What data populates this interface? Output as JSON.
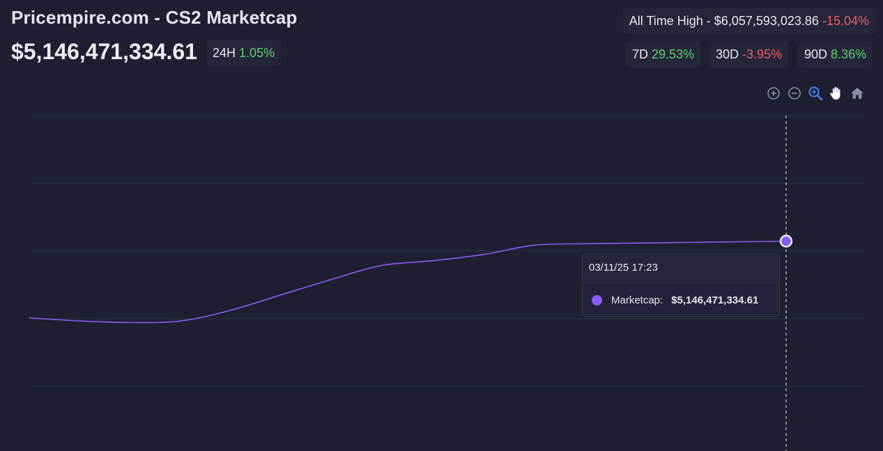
{
  "header": {
    "title": "Pricempire.com - CS2 Marketcap",
    "price": "$5,146,471,334.61",
    "change_24h_label": "24H",
    "change_24h_value": "1.05%",
    "ath_label": "All Time High - $6,057,593,023.86",
    "ath_change": "-15.04%",
    "periods": [
      {
        "label": "7D",
        "value": "29.53%"
      },
      {
        "label": "30D",
        "value": "-3.95%"
      },
      {
        "label": "90D",
        "value": "8.36%"
      }
    ]
  },
  "toolbar": {
    "icons": [
      "zoom-in-icon",
      "zoom-out-icon",
      "selection-zoom-icon",
      "pan-hand-icon",
      "reset-home-icon"
    ]
  },
  "tooltip": {
    "date": "03/11/25 17:23",
    "series_label": "Marketcap:",
    "value": "$5,146,471,334.61"
  },
  "colors": {
    "background": "#1e1f31",
    "line": "#8b5cf6",
    "positive": "#5fd06b",
    "negative": "#ef5f62",
    "active_icon": "#3f7ee8"
  },
  "chart_data": {
    "type": "line",
    "series": [
      {
        "name": "Marketcap",
        "values": [
          4.65,
          4.63,
          4.62,
          4.63,
          4.7,
          4.8,
          4.9,
          4.99,
          5.02,
          5.06,
          5.12,
          5.13,
          5.134,
          5.138,
          5.142,
          5.1465
        ]
      }
    ],
    "grid": true,
    "legend": "none",
    "highlighted": {
      "label": "03/11/25 17:23",
      "value": 5146471334.61
    }
  }
}
